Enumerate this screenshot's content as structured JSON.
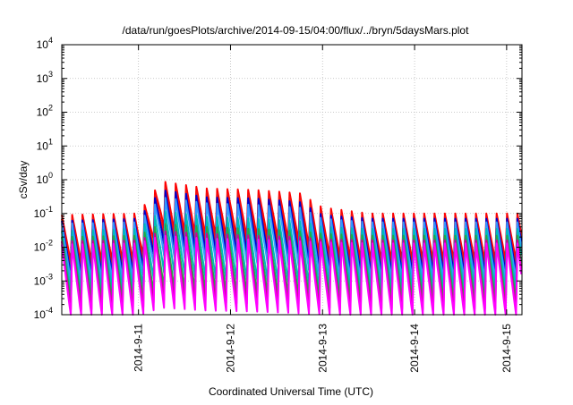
{
  "chart_data": {
    "type": "line",
    "title": "/data/run/goesPlots/archive/2014-09-15/04:00/flux/../bryn/5daysMars.plot",
    "xlabel": "Coordinated Universal Time (UTC)",
    "ylabel": "cSv/day",
    "y_scale": "log",
    "ylim": [
      0.0001,
      10000
    ],
    "y_ticks": [
      {
        "base": "10",
        "exp": "-4"
      },
      {
        "base": "10",
        "exp": "-3"
      },
      {
        "base": "10",
        "exp": "-2"
      },
      {
        "base": "10",
        "exp": "-1"
      },
      {
        "base": "10",
        "exp": "0"
      },
      {
        "base": "10",
        "exp": "1"
      },
      {
        "base": "10",
        "exp": "2"
      },
      {
        "base": "10",
        "exp": "3"
      },
      {
        "base": "10",
        "exp": "4"
      }
    ],
    "xlim": [
      "2014-09-10T04:00",
      "2014-09-15T04:00"
    ],
    "x_ticks": [
      "2014-9-11",
      "2014-9-12",
      "2014-9-13",
      "2014-9-14",
      "2014-9-15"
    ],
    "grid": true,
    "sawtooth_period_hours": 2.7,
    "series": [
      {
        "color": "#ff0000",
        "points": [
          [
            "2014-09-10T04:00",
            0.09
          ],
          [
            "2014-09-11T00:00",
            0.1
          ],
          [
            "2014-09-11T06:00",
            0.9
          ],
          [
            "2014-09-11T18:00",
            0.55
          ],
          [
            "2014-09-12T06:00",
            0.5
          ],
          [
            "2014-09-12T18:00",
            0.4
          ],
          [
            "2014-09-13T00:00",
            0.15
          ],
          [
            "2014-09-13T12:00",
            0.1
          ],
          [
            "2014-09-14T12:00",
            0.1
          ],
          [
            "2014-09-15T04:00",
            0.1
          ]
        ]
      },
      {
        "color": "#ee1111",
        "points": [
          [
            "2014-09-10T04:00",
            0.07
          ],
          [
            "2014-09-11T00:00",
            0.08
          ],
          [
            "2014-09-11T06:00",
            0.6
          ],
          [
            "2014-09-11T18:00",
            0.4
          ],
          [
            "2014-09-12T06:00",
            0.35
          ],
          [
            "2014-09-12T18:00",
            0.3
          ],
          [
            "2014-09-13T00:00",
            0.11
          ],
          [
            "2014-09-13T12:00",
            0.08
          ],
          [
            "2014-09-14T12:00",
            0.08
          ],
          [
            "2014-09-15T04:00",
            0.08
          ]
        ]
      },
      {
        "color": "#0000cc",
        "points": [
          [
            "2014-09-10T04:00",
            0.06
          ],
          [
            "2014-09-11T00:00",
            0.07
          ],
          [
            "2014-09-11T06:00",
            0.5
          ],
          [
            "2014-09-11T18:00",
            0.3
          ],
          [
            "2014-09-12T06:00",
            0.28
          ],
          [
            "2014-09-12T18:00",
            0.22
          ],
          [
            "2014-09-13T00:00",
            0.09
          ],
          [
            "2014-09-13T12:00",
            0.07
          ],
          [
            "2014-09-14T12:00",
            0.07
          ],
          [
            "2014-09-15T04:00",
            0.07
          ]
        ]
      },
      {
        "color": "#3399ff",
        "points": [
          [
            "2014-09-10T04:00",
            0.05
          ],
          [
            "2014-09-11T00:00",
            0.055
          ],
          [
            "2014-09-11T06:00",
            0.3
          ],
          [
            "2014-09-11T18:00",
            0.2
          ],
          [
            "2014-09-12T06:00",
            0.18
          ],
          [
            "2014-09-12T18:00",
            0.15
          ],
          [
            "2014-09-13T00:00",
            0.07
          ],
          [
            "2014-09-13T12:00",
            0.055
          ],
          [
            "2014-09-14T12:00",
            0.055
          ],
          [
            "2014-09-15T04:00",
            0.055
          ]
        ]
      },
      {
        "color": "#00bbbb",
        "points": [
          [
            "2014-09-10T04:00",
            0.03
          ],
          [
            "2014-09-11T00:00",
            0.035
          ],
          [
            "2014-09-11T06:00",
            0.12
          ],
          [
            "2014-09-11T18:00",
            0.08
          ],
          [
            "2014-09-12T06:00",
            0.07
          ],
          [
            "2014-09-12T18:00",
            0.06
          ],
          [
            "2014-09-13T00:00",
            0.04
          ],
          [
            "2014-09-13T12:00",
            0.035
          ],
          [
            "2014-09-14T12:00",
            0.035
          ],
          [
            "2014-09-15T04:00",
            0.035
          ]
        ]
      },
      {
        "color": "#22aa44",
        "points": [
          [
            "2014-09-10T04:00",
            0.02
          ],
          [
            "2014-09-11T00:00",
            0.022
          ],
          [
            "2014-09-11T06:00",
            0.05
          ],
          [
            "2014-09-11T18:00",
            0.04
          ],
          [
            "2014-09-12T06:00",
            0.035
          ],
          [
            "2014-09-12T18:00",
            0.03
          ],
          [
            "2014-09-13T00:00",
            0.025
          ],
          [
            "2014-09-13T12:00",
            0.022
          ],
          [
            "2014-09-14T12:00",
            0.022
          ],
          [
            "2014-09-15T04:00",
            0.022
          ]
        ]
      },
      {
        "color": "#cc0099",
        "points": [
          [
            "2014-09-10T04:00",
            0.015
          ],
          [
            "2014-09-11T00:00",
            0.016
          ],
          [
            "2014-09-11T06:00",
            0.03
          ],
          [
            "2014-09-11T18:00",
            0.025
          ],
          [
            "2014-09-12T06:00",
            0.022
          ],
          [
            "2014-09-12T18:00",
            0.02
          ],
          [
            "2014-09-13T00:00",
            0.017
          ],
          [
            "2014-09-13T12:00",
            0.016
          ],
          [
            "2014-09-14T12:00",
            0.016
          ],
          [
            "2014-09-15T04:00",
            0.016
          ]
        ]
      },
      {
        "color": "#ff00ff",
        "points": [
          [
            "2014-09-10T04:00",
            0.012
          ],
          [
            "2014-09-11T00:00",
            0.013
          ],
          [
            "2014-09-11T06:00",
            0.022
          ],
          [
            "2014-09-11T18:00",
            0.018
          ],
          [
            "2014-09-12T06:00",
            0.017
          ],
          [
            "2014-09-12T18:00",
            0.015
          ],
          [
            "2014-09-13T00:00",
            0.014
          ],
          [
            "2014-09-13T12:00",
            0.013
          ],
          [
            "2014-09-14T12:00",
            0.013
          ],
          [
            "2014-09-15T04:00",
            0.013
          ]
        ]
      }
    ]
  }
}
